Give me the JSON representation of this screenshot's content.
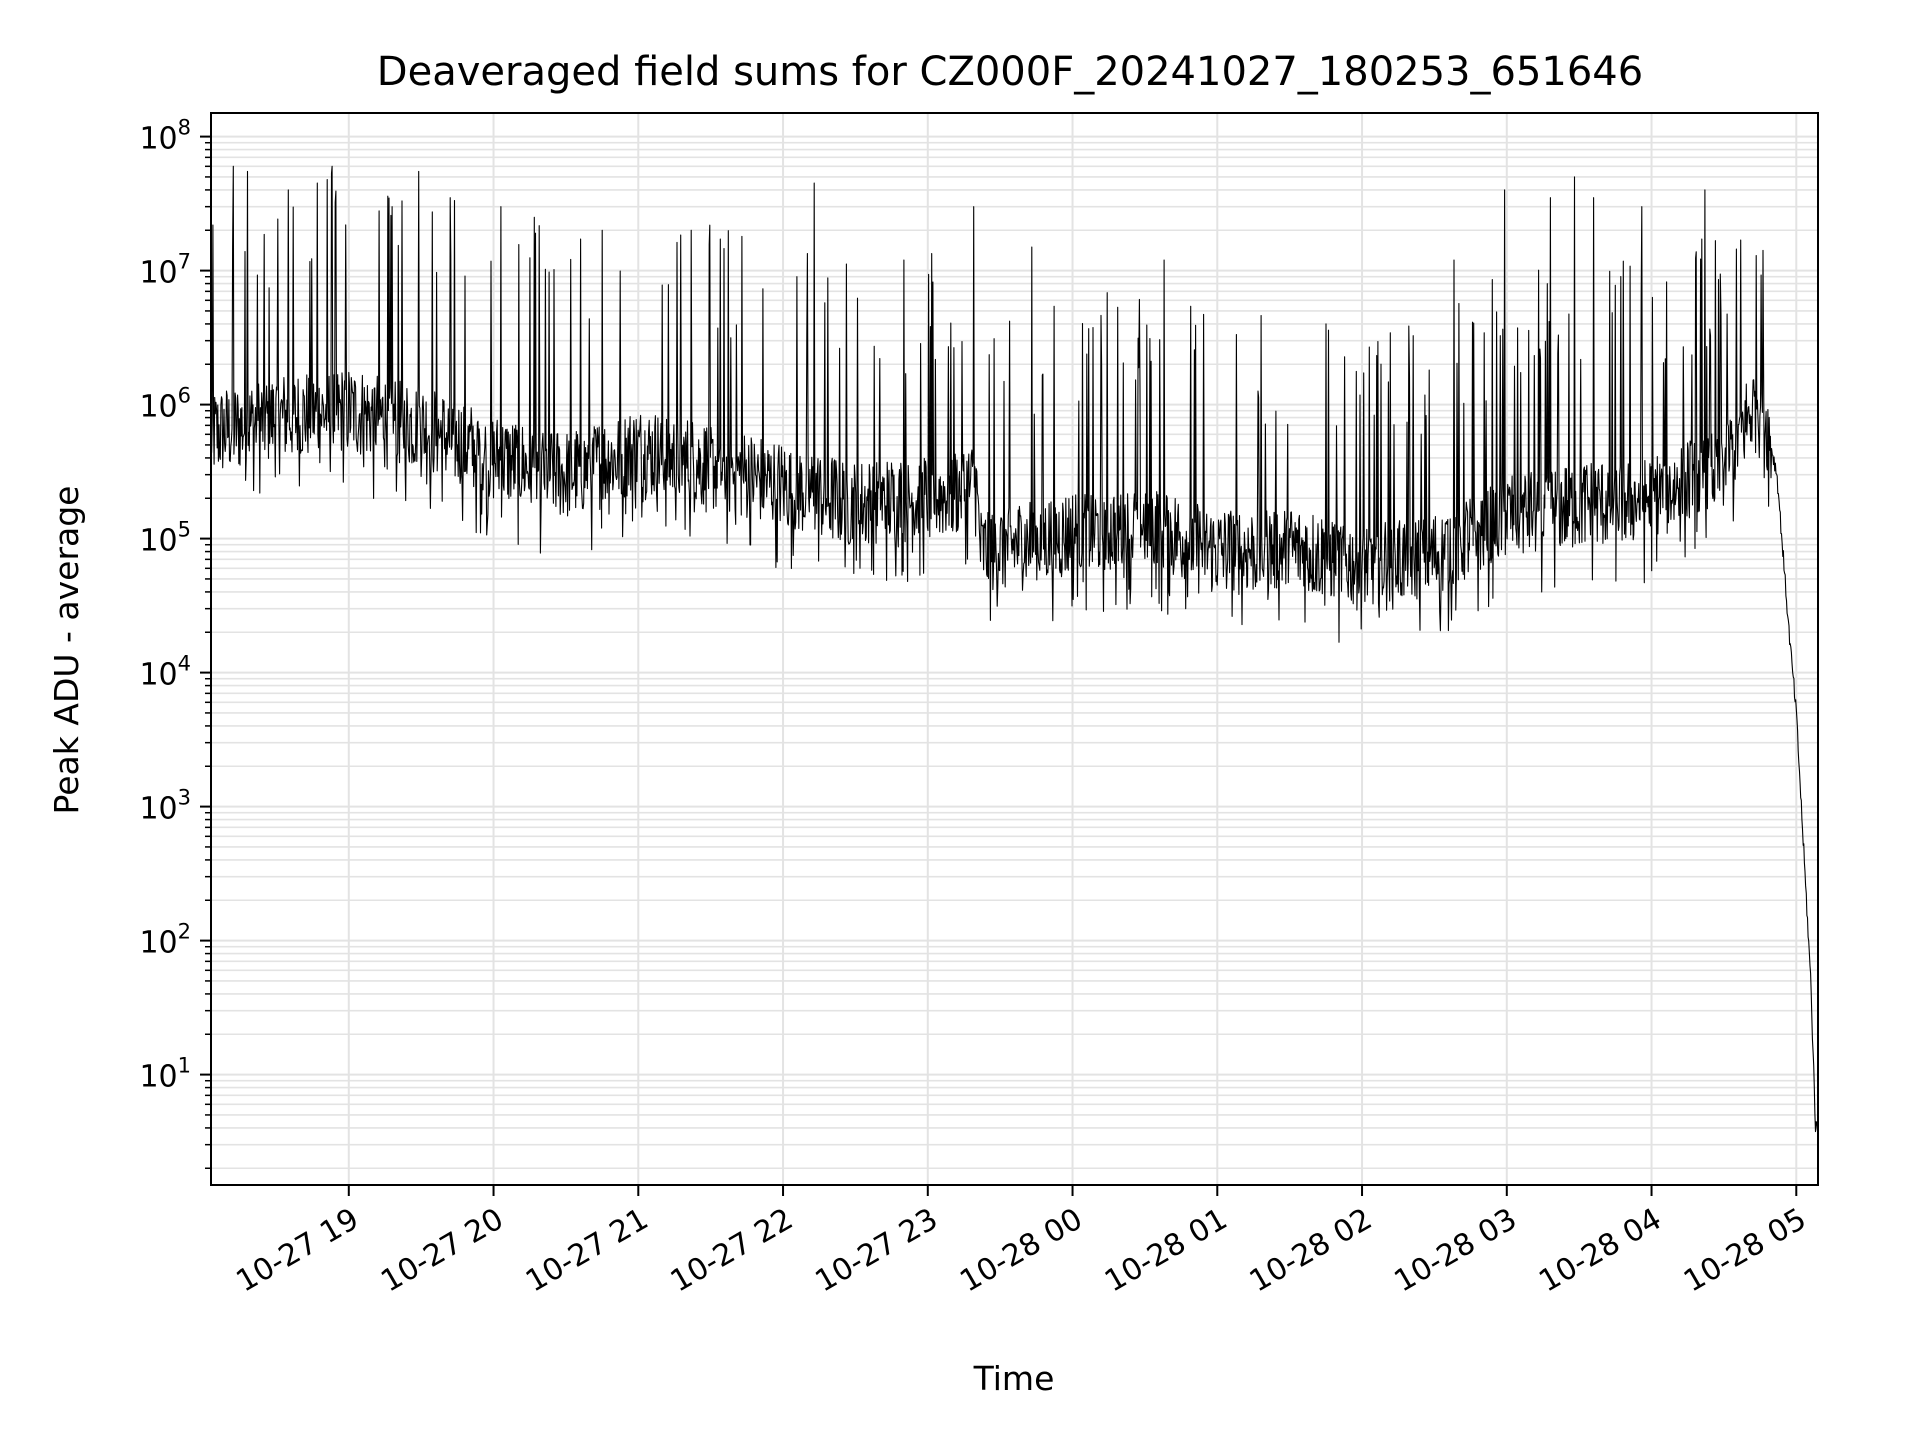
{
  "chart_data": {
    "type": "line",
    "title": "Deaveraged field sums for CZ000F_20241027_180253_651646",
    "xlabel": "Time",
    "ylabel": "Peak ADU - average",
    "y_scale": "log",
    "grid": true,
    "line_color": "#000000",
    "x_range": [
      "2024-10-27 18:02:53",
      "2024-10-28 05:09:00"
    ],
    "ylim": [
      1.5,
      150000000
    ],
    "x_ticks": [
      {
        "value": "2024-10-27 19:00",
        "label": "10-27 19"
      },
      {
        "value": "2024-10-27 20:00",
        "label": "10-27 20"
      },
      {
        "value": "2024-10-27 21:00",
        "label": "10-27 21"
      },
      {
        "value": "2024-10-27 22:00",
        "label": "10-27 22"
      },
      {
        "value": "2024-10-27 23:00",
        "label": "10-27 23"
      },
      {
        "value": "2024-10-28 00:00",
        "label": "10-28 00"
      },
      {
        "value": "2024-10-28 01:00",
        "label": "10-28 01"
      },
      {
        "value": "2024-10-28 02:00",
        "label": "10-28 02"
      },
      {
        "value": "2024-10-28 03:00",
        "label": "10-28 03"
      },
      {
        "value": "2024-10-28 04:00",
        "label": "10-28 04"
      },
      {
        "value": "2024-10-28 05:00",
        "label": "10-28 05"
      }
    ],
    "y_ticks": [
      {
        "value": 10,
        "base": "10",
        "exp": "1"
      },
      {
        "value": 100,
        "base": "10",
        "exp": "2"
      },
      {
        "value": 1000,
        "base": "10",
        "exp": "3"
      },
      {
        "value": 10000,
        "base": "10",
        "exp": "4"
      },
      {
        "value": 100000,
        "base": "10",
        "exp": "5"
      },
      {
        "value": 1000000,
        "base": "10",
        "exp": "6"
      },
      {
        "value": 10000000,
        "base": "10",
        "exp": "7"
      },
      {
        "value": 100000000,
        "base": "10",
        "exp": "8"
      }
    ],
    "series": [
      {
        "baseline": [
          [
            "2024-10-27 18:02:53",
            600000
          ],
          [
            "2024-10-27 18:30",
            800000
          ],
          [
            "2024-10-27 19:00",
            900000
          ],
          [
            "2024-10-27 19:30",
            700000
          ],
          [
            "2024-10-27 20:00",
            400000
          ],
          [
            "2024-10-27 20:30",
            300000
          ],
          [
            "2024-10-27 21:00",
            450000
          ],
          [
            "2024-10-27 21:30",
            350000
          ],
          [
            "2024-10-27 22:00",
            250000
          ],
          [
            "2024-10-27 22:30",
            180000
          ],
          [
            "2024-10-27 23:00",
            200000
          ],
          [
            "2024-10-27 23:20",
            250000
          ],
          [
            "2024-10-27 23:22",
            80000
          ],
          [
            "2024-10-28 00:00",
            110000
          ],
          [
            "2024-10-28 00:30",
            130000
          ],
          [
            "2024-10-28 01:00",
            80000
          ],
          [
            "2024-10-28 01:30",
            85000
          ],
          [
            "2024-10-28 02:00",
            65000
          ],
          [
            "2024-10-28 02:30",
            75000
          ],
          [
            "2024-10-28 03:00",
            150000
          ],
          [
            "2024-10-28 03:30",
            180000
          ],
          [
            "2024-10-28 04:00",
            200000
          ],
          [
            "2024-10-28 04:30",
            350000
          ],
          [
            "2024-10-28 04:45",
            1200000
          ],
          [
            "2024-10-28 04:52",
            300000
          ],
          [
            "2024-10-28 04:57",
            20000
          ],
          [
            "2024-10-28 05:00",
            5000
          ],
          [
            "2024-10-28 05:03",
            500
          ],
          [
            "2024-10-28 05:06",
            50
          ],
          [
            "2024-10-28 05:08",
            4
          ],
          [
            "2024-10-28 05:09",
            4
          ]
        ],
        "noise_decades": 0.35,
        "spikes": [
          [
            "2024-10-27 18:12",
            60000000
          ],
          [
            "2024-10-27 18:18",
            55000000
          ],
          [
            "2024-10-27 18:35",
            40000000
          ],
          [
            "2024-10-27 18:47",
            45000000
          ],
          [
            "2024-10-27 18:53",
            60000000
          ],
          [
            "2024-10-27 19:18",
            30000000
          ],
          [
            "2024-10-27 19:29",
            55000000
          ],
          [
            "2024-10-27 19:42",
            35000000
          ],
          [
            "2024-10-27 20:03",
            30000000
          ],
          [
            "2024-10-27 20:17",
            25000000
          ],
          [
            "2024-10-27 20:45",
            20000000
          ],
          [
            "2024-10-27 21:22",
            20000000
          ],
          [
            "2024-10-27 21:43",
            18000000
          ],
          [
            "2024-10-27 22:13",
            45000000
          ],
          [
            "2024-10-27 22:50",
            12000000
          ],
          [
            "2024-10-27 23:19",
            30000000
          ],
          [
            "2024-10-27 23:43",
            15000000
          ],
          [
            "2024-10-28 00:38",
            12000000
          ],
          [
            "2024-10-28 01:45",
            4000000
          ],
          [
            "2024-10-28 02:38",
            12000000
          ],
          [
            "2024-10-28 02:59",
            40000000
          ],
          [
            "2024-10-28 03:18",
            35000000
          ],
          [
            "2024-10-28 03:28",
            50000000
          ],
          [
            "2024-10-28 03:36",
            35000000
          ],
          [
            "2024-10-28 03:56",
            30000000
          ],
          [
            "2024-10-28 04:22",
            40000000
          ]
        ]
      }
    ]
  }
}
